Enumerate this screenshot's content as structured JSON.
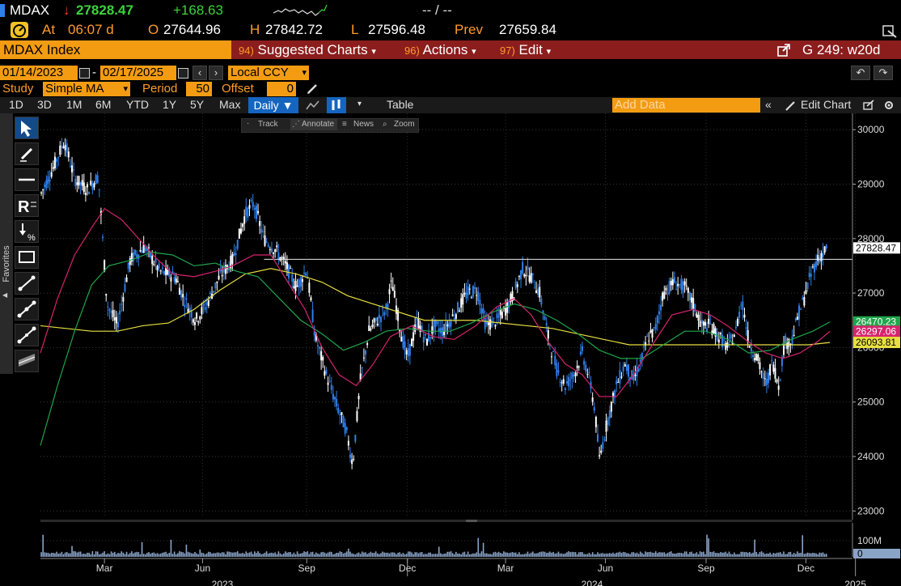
{
  "ticker": {
    "symbol": "MDAX",
    "arrow": "↓",
    "last": "27828.47",
    "change": "+168.63",
    "bid_ask": "-- / --"
  },
  "quote": {
    "at_label": "At",
    "time": "06:07 d",
    "open_label": "O",
    "open": "27644.96",
    "high_label": "H",
    "high": "27842.72",
    "low_label": "L",
    "low": "27596.48",
    "prev_label": "Prev",
    "prev": "27659.84"
  },
  "title_bar": {
    "security": "MDAX Index",
    "menus": [
      {
        "num": "94)",
        "label": "Suggested Charts"
      },
      {
        "num": "96)",
        "label": "Actions"
      },
      {
        "num": "97)",
        "label": "Edit"
      }
    ],
    "page_code": "G 249: w20d"
  },
  "date_range": {
    "start": "01/14/2023",
    "separator": "-",
    "end": "02/17/2025",
    "currency": "Local CCY"
  },
  "study": {
    "label": "Study",
    "value": "Simple MA",
    "period_label": "Period",
    "period": "50",
    "offset_label": "Offset",
    "offset": "0"
  },
  "periods": [
    "1D",
    "3D",
    "1M",
    "6M",
    "YTD",
    "1Y",
    "5Y",
    "Max"
  ],
  "frequency": "Daily ▼",
  "table_label": "Table",
  "add_data_placeholder": "Add Data",
  "edit_chart_label": "Edit Chart",
  "mini_tools": [
    "Track",
    "Annotate",
    "News",
    "Zoom"
  ],
  "favorites_label": "Favorites",
  "chart_data": {
    "type": "line",
    "yticks": [
      "30000",
      "29000",
      "28000",
      "27000",
      "26000",
      "25000",
      "24000",
      "23000"
    ],
    "ylim": [
      22900,
      30300
    ],
    "xticks": [
      "Mar",
      "Jun",
      "Sep",
      "Dec",
      "Mar",
      "Jun",
      "Sep",
      "Dec",
      "2025"
    ],
    "years": [
      "2023",
      "2024",
      "2025"
    ],
    "volume_label": "100M",
    "volume_zero": "0",
    "reference_line": 27620,
    "price": [
      [
        0,
        28800
      ],
      [
        15,
        29300
      ],
      [
        28,
        29800
      ],
      [
        40,
        29100
      ],
      [
        55,
        28900
      ],
      [
        68,
        29150
      ],
      [
        78,
        26800
      ],
      [
        90,
        26400
      ],
      [
        105,
        27600
      ],
      [
        122,
        27850
      ],
      [
        140,
        27400
      ],
      [
        158,
        27300
      ],
      [
        168,
        26900
      ],
      [
        182,
        26500
      ],
      [
        195,
        26800
      ],
      [
        210,
        27300
      ],
      [
        225,
        27600
      ],
      [
        240,
        28450
      ],
      [
        250,
        28650
      ],
      [
        262,
        28000
      ],
      [
        275,
        27800
      ],
      [
        288,
        27500
      ],
      [
        300,
        27100
      ],
      [
        312,
        27450
      ],
      [
        322,
        26200
      ],
      [
        335,
        25500
      ],
      [
        348,
        24900
      ],
      [
        358,
        24500
      ],
      [
        366,
        23850
      ],
      [
        375,
        25400
      ],
      [
        385,
        26300
      ],
      [
        395,
        26500
      ],
      [
        405,
        26700
      ],
      [
        412,
        27200
      ],
      [
        422,
        26300
      ],
      [
        430,
        25800
      ],
      [
        442,
        26500
      ],
      [
        452,
        26100
      ],
      [
        462,
        26400
      ],
      [
        472,
        26300
      ],
      [
        485,
        26600
      ],
      [
        500,
        27000
      ],
      [
        512,
        27050
      ],
      [
        522,
        26400
      ],
      [
        535,
        26500
      ],
      [
        545,
        26700
      ],
      [
        555,
        27000
      ],
      [
        565,
        27450
      ],
      [
        575,
        27300
      ],
      [
        585,
        27000
      ],
      [
        595,
        26200
      ],
      [
        605,
        25600
      ],
      [
        615,
        25300
      ],
      [
        625,
        25500
      ],
      [
        635,
        25900
      ],
      [
        645,
        25300
      ],
      [
        650,
        24800
      ],
      [
        655,
        23950
      ],
      [
        665,
        24700
      ],
      [
        675,
        25300
      ],
      [
        685,
        25700
      ],
      [
        695,
        25400
      ],
      [
        705,
        25800
      ],
      [
        712,
        26200
      ],
      [
        720,
        26300
      ],
      [
        730,
        27000
      ],
      [
        742,
        27200
      ],
      [
        755,
        27100
      ],
      [
        765,
        26800
      ],
      [
        775,
        26400
      ],
      [
        785,
        26400
      ],
      [
        795,
        26200
      ],
      [
        805,
        26000
      ],
      [
        815,
        26300
      ],
      [
        822,
        26900
      ],
      [
        830,
        26100
      ],
      [
        840,
        25800
      ],
      [
        850,
        25300
      ],
      [
        858,
        25750
      ],
      [
        865,
        25300
      ],
      [
        872,
        26100
      ],
      [
        880,
        26100
      ],
      [
        888,
        26600
      ],
      [
        895,
        26900
      ],
      [
        902,
        27300
      ],
      [
        908,
        27550
      ],
      [
        915,
        27700
      ],
      [
        922,
        27828
      ]
    ],
    "ma_green": [
      [
        0,
        24200
      ],
      [
        20,
        25300
      ],
      [
        40,
        26300
      ],
      [
        60,
        27150
      ],
      [
        80,
        27500
      ],
      [
        105,
        27600
      ],
      [
        130,
        27750
      ],
      [
        155,
        27700
      ],
      [
        180,
        27500
      ],
      [
        205,
        27550
      ],
      [
        230,
        27400
      ],
      [
        255,
        27300
      ],
      [
        280,
        26900
      ],
      [
        305,
        26500
      ],
      [
        330,
        26250
      ],
      [
        355,
        25950
      ],
      [
        380,
        26100
      ],
      [
        405,
        26300
      ],
      [
        430,
        26350
      ],
      [
        455,
        26300
      ],
      [
        480,
        26300
      ],
      [
        505,
        26450
      ],
      [
        530,
        26650
      ],
      [
        555,
        26800
      ],
      [
        580,
        26700
      ],
      [
        605,
        26500
      ],
      [
        630,
        26250
      ],
      [
        655,
        25950
      ],
      [
        680,
        25800
      ],
      [
        705,
        25800
      ],
      [
        730,
        26050
      ],
      [
        755,
        26300
      ],
      [
        780,
        26300
      ],
      [
        805,
        26150
      ],
      [
        830,
        25900
      ],
      [
        855,
        25950
      ],
      [
        880,
        26150
      ],
      [
        905,
        26300
      ],
      [
        925,
        26470
      ]
    ],
    "ma_magenta": [
      [
        0,
        25900
      ],
      [
        20,
        26900
      ],
      [
        40,
        27700
      ],
      [
        60,
        28200
      ],
      [
        75,
        28550
      ],
      [
        95,
        28350
      ],
      [
        115,
        28000
      ],
      [
        135,
        27650
      ],
      [
        155,
        27350
      ],
      [
        180,
        27300
      ],
      [
        205,
        27400
      ],
      [
        225,
        27500
      ],
      [
        250,
        27700
      ],
      [
        270,
        27700
      ],
      [
        290,
        27200
      ],
      [
        310,
        26700
      ],
      [
        330,
        26000
      ],
      [
        350,
        25500
      ],
      [
        370,
        25300
      ],
      [
        390,
        25700
      ],
      [
        410,
        26200
      ],
      [
        435,
        26400
      ],
      [
        460,
        26200
      ],
      [
        485,
        26150
      ],
      [
        510,
        26400
      ],
      [
        535,
        26750
      ],
      [
        555,
        26900
      ],
      [
        575,
        26600
      ],
      [
        595,
        26100
      ],
      [
        615,
        25700
      ],
      [
        635,
        25500
      ],
      [
        655,
        25100
      ],
      [
        675,
        25100
      ],
      [
        695,
        25500
      ],
      [
        715,
        26000
      ],
      [
        740,
        26600
      ],
      [
        765,
        26700
      ],
      [
        785,
        26600
      ],
      [
        805,
        26400
      ],
      [
        830,
        26100
      ],
      [
        850,
        25900
      ],
      [
        870,
        25800
      ],
      [
        890,
        25900
      ],
      [
        910,
        26100
      ],
      [
        925,
        26297
      ]
    ],
    "ma_yellow": [
      [
        0,
        26400
      ],
      [
        30,
        26350
      ],
      [
        60,
        26300
      ],
      [
        90,
        26300
      ],
      [
        120,
        26400
      ],
      [
        150,
        26450
      ],
      [
        180,
        26700
      ],
      [
        210,
        27050
      ],
      [
        240,
        27350
      ],
      [
        270,
        27450
      ],
      [
        300,
        27350
      ],
      [
        330,
        27200
      ],
      [
        360,
        26950
      ],
      [
        390,
        26800
      ],
      [
        420,
        26650
      ],
      [
        450,
        26500
      ],
      [
        480,
        26500
      ],
      [
        510,
        26500
      ],
      [
        540,
        26450
      ],
      [
        570,
        26400
      ],
      [
        600,
        26350
      ],
      [
        630,
        26250
      ],
      [
        660,
        26150
      ],
      [
        690,
        26050
      ],
      [
        720,
        26050
      ],
      [
        750,
        26050
      ],
      [
        780,
        26050
      ],
      [
        810,
        26050
      ],
      [
        840,
        26050
      ],
      [
        870,
        26050
      ],
      [
        900,
        26050
      ],
      [
        925,
        26093
      ]
    ],
    "labels": {
      "last_price": "27828.47",
      "ma_green_value": "26470.23",
      "ma_magenta_value": "26297.06",
      "ma_yellow_value": "26093.81"
    },
    "colors": {
      "price": "#2f7fe8",
      "candle": "#ffffff",
      "ma_green": "#1fa64a",
      "ma_magenta": "#d6246e",
      "ma_yellow": "#e8e040",
      "ref_line": "#e8e8e8",
      "last_bg": "#ffffff",
      "green_bg": "#1fa64a",
      "magenta_bg": "#d6246e",
      "yellow_bg": "#e8e040"
    }
  }
}
